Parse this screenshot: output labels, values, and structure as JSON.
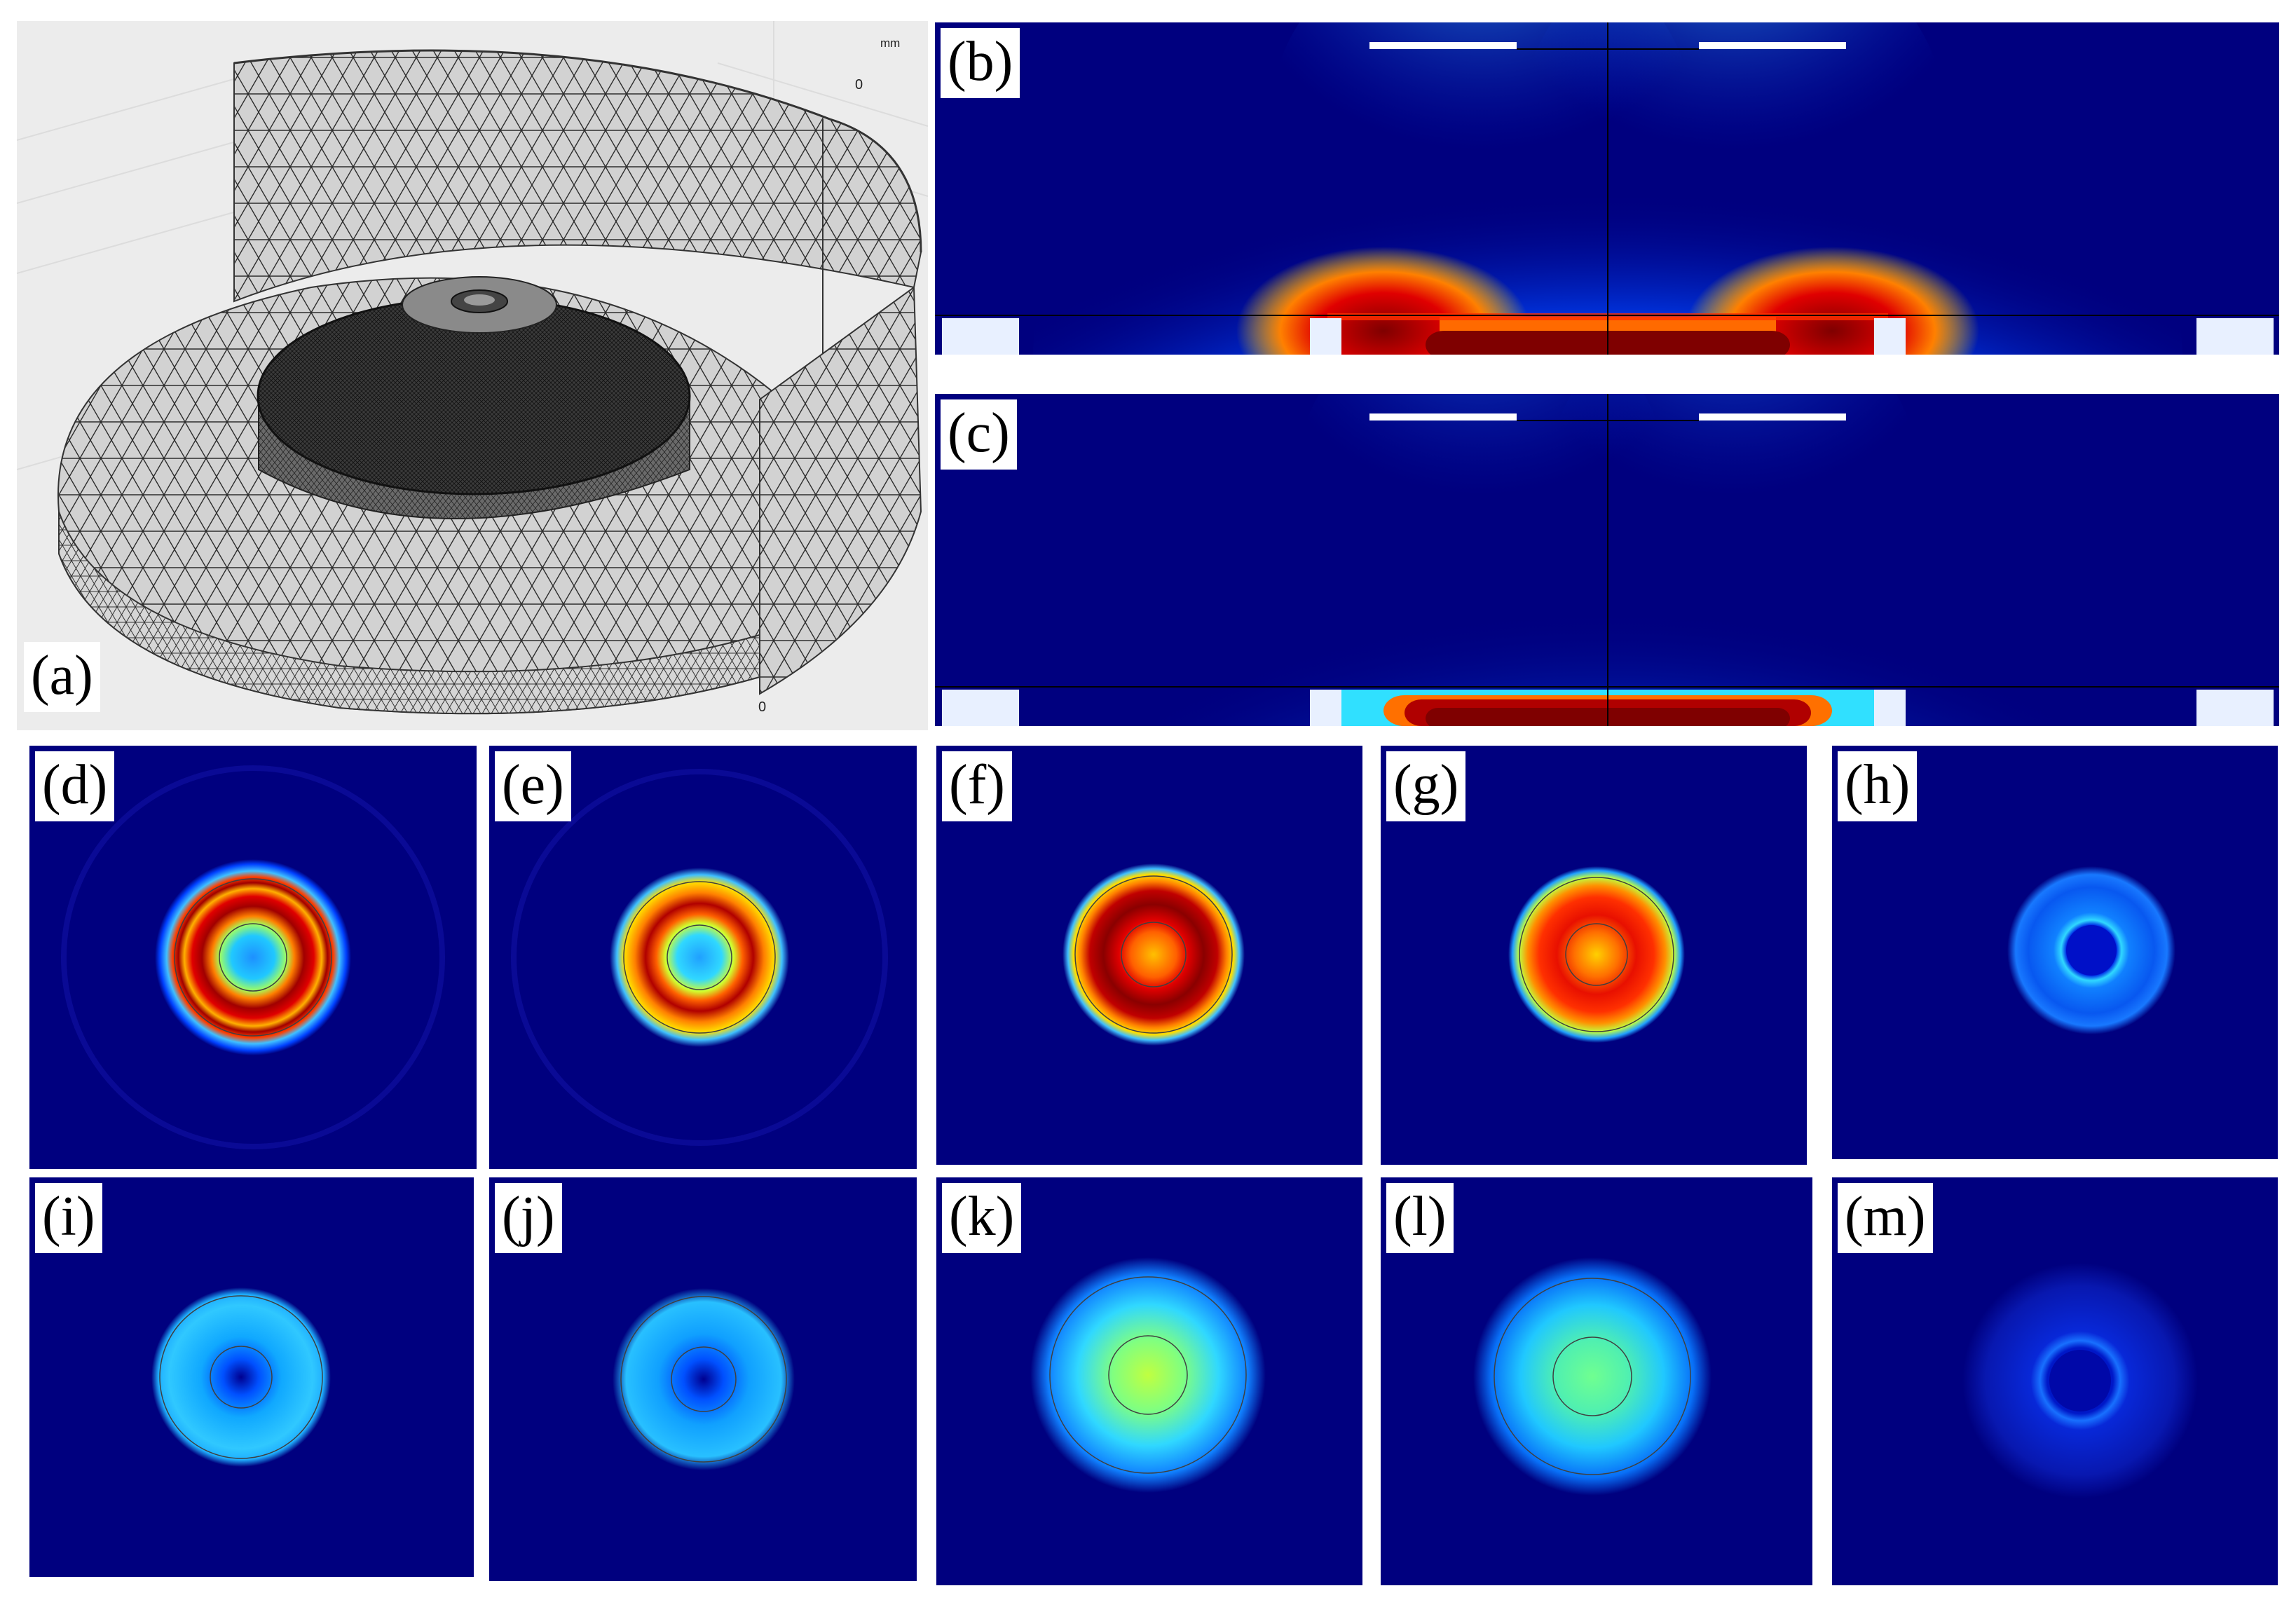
{
  "panels": {
    "a": {
      "label": "(a)",
      "axis_unit": "mm",
      "axis_tick_top": "0",
      "axis_tick_bottom": "0"
    },
    "b": {
      "label": "(b)"
    },
    "c": {
      "label": "(c)"
    },
    "d": {
      "label": "(d)"
    },
    "e": {
      "label": "(e)"
    },
    "f": {
      "label": "(f)"
    },
    "g": {
      "label": "(g)"
    },
    "h": {
      "label": "(h)"
    },
    "i": {
      "label": "(i)"
    },
    "j": {
      "label": "(j)"
    },
    "k": {
      "label": "(k)"
    },
    "l": {
      "label": "(l)"
    },
    "m": {
      "label": "(m)"
    }
  },
  "colors": {
    "background_field": "#00007f",
    "mesh_fill": "#d4d4d4",
    "mesh_line": "#2a2a2a",
    "frame_bg": "#ececec"
  }
}
